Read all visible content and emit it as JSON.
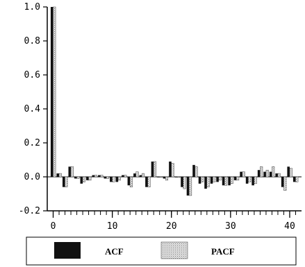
{
  "chart_data": {
    "type": "bar",
    "x_label": "",
    "y_label": "",
    "ylim": [
      -0.2,
      1.0
    ],
    "xlim": [
      -1,
      42
    ],
    "y_ticks": [
      -0.2,
      0.0,
      0.2,
      0.4,
      0.6,
      0.8,
      1.0
    ],
    "y_tick_labels": [
      "-0.2",
      "0.0",
      "0.2",
      "0.4",
      "0.6",
      "0.8",
      "1.0"
    ],
    "x_ticks": [
      0,
      10,
      20,
      30,
      40
    ],
    "x_tick_labels": [
      "0",
      "10",
      "20",
      "30",
      "40"
    ],
    "legend_position": "bottom",
    "grid": false,
    "lags": [
      0,
      1,
      2,
      3,
      4,
      5,
      6,
      7,
      8,
      9,
      10,
      11,
      12,
      13,
      14,
      15,
      16,
      17,
      18,
      19,
      20,
      21,
      22,
      23,
      24,
      25,
      26,
      27,
      28,
      29,
      30,
      31,
      32,
      33,
      34,
      35,
      36,
      37,
      38,
      39,
      40,
      41
    ],
    "series": [
      {
        "name": "ACF",
        "color": "#111111",
        "values": [
          1.0,
          0.02,
          -0.06,
          0.06,
          -0.01,
          -0.04,
          -0.02,
          0.01,
          0.01,
          -0.01,
          -0.03,
          -0.03,
          0.01,
          -0.05,
          0.02,
          0.01,
          -0.06,
          0.09,
          0.0,
          -0.01,
          0.09,
          0.0,
          -0.06,
          -0.11,
          0.07,
          -0.04,
          -0.07,
          -0.04,
          -0.03,
          -0.05,
          -0.05,
          -0.02,
          0.03,
          -0.04,
          -0.05,
          0.04,
          0.03,
          0.03,
          0.02,
          -0.06,
          0.06,
          -0.03
        ]
      },
      {
        "name": "PACF",
        "color": "#cfcfcf",
        "values": [
          1.0,
          0.02,
          -0.06,
          0.06,
          -0.01,
          -0.03,
          -0.02,
          0.01,
          0.01,
          -0.01,
          -0.03,
          -0.02,
          0.01,
          -0.06,
          0.03,
          0.02,
          -0.06,
          0.09,
          0.0,
          -0.02,
          0.08,
          0.0,
          -0.07,
          -0.11,
          0.06,
          -0.03,
          -0.06,
          -0.03,
          -0.02,
          -0.05,
          -0.04,
          -0.02,
          0.03,
          -0.03,
          -0.04,
          0.06,
          0.04,
          0.06,
          0.02,
          -0.08,
          0.05,
          -0.03
        ]
      }
    ]
  }
}
